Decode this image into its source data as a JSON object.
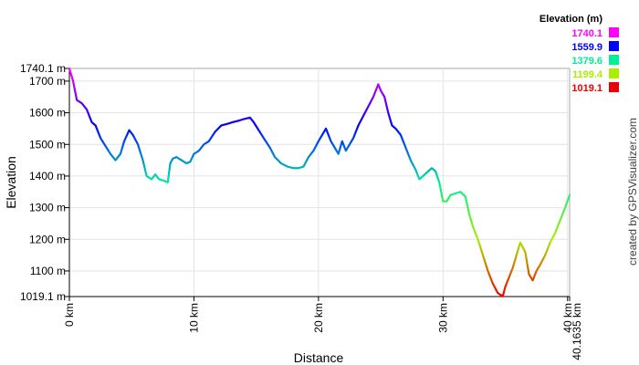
{
  "chart_data": {
    "type": "line",
    "xlabel": "Distance",
    "ylabel": "Elevation",
    "x_unit": "km",
    "xlim": [
      0,
      40.1635
    ],
    "ylim": [
      1019.1,
      1740.1
    ],
    "x_ticks": [
      "0 km",
      "10 km",
      "20 km",
      "30 km",
      "40 km"
    ],
    "x_end_label": "40.1635 km",
    "y_ticks": [
      "1740.1 m",
      "1700 m",
      "1600 m",
      "1500 m",
      "1400 m",
      "1300 m",
      "1200 m",
      "1100 m",
      "1019.1 m"
    ],
    "y_tick_values": [
      1740.1,
      1700,
      1600,
      1500,
      1400,
      1300,
      1200,
      1100,
      1019.1
    ],
    "x_tick_values": [
      0,
      10,
      20,
      30,
      40,
      40.1635
    ],
    "legend": {
      "title": "Elevation (m)",
      "placement": "top-right",
      "entries": [
        {
          "label": "1740.1",
          "color": "#ff00ff"
        },
        {
          "label": "1559.9",
          "color": "#0000ff"
        },
        {
          "label": "1379.6",
          "color": "#00ee99"
        },
        {
          "label": "1199.4",
          "color": "#aaee00"
        },
        {
          "label": "1019.1",
          "color": "#ee0000"
        }
      ]
    },
    "credit": "created by GPSVisualizer.com",
    "grid": true,
    "series": [
      {
        "x": [
          0,
          0.3,
          0.6,
          1.0,
          1.4,
          1.8,
          2.1,
          2.5,
          2.9,
          3.3,
          3.7,
          4.1,
          4.4,
          4.8,
          5.1,
          5.5,
          5.9,
          6.2,
          6.6,
          6.9,
          7.2,
          7.6,
          7.9,
          8.1,
          8.3,
          8.6,
          9.0,
          9.4,
          9.7,
          10.0,
          10.4,
          10.8,
          11.2,
          11.7,
          12.2,
          12.7,
          13.1,
          13.6,
          14.0,
          14.5,
          14.8,
          15.2,
          15.6,
          16.1,
          16.5,
          17.0,
          17.5,
          18.0,
          18.4,
          18.8,
          19.2,
          19.6,
          20.0,
          20.3,
          20.6,
          21.0,
          21.3,
          21.6,
          21.9,
          22.2,
          22.5,
          22.8,
          23.2,
          23.6,
          24.0,
          24.4,
          24.8,
          25.0,
          25.3,
          25.6,
          25.9,
          26.2,
          26.6,
          27.0,
          27.4,
          27.8,
          28.1,
          28.4,
          28.8,
          29.1,
          29.4,
          29.7,
          30.0,
          30.3,
          30.6,
          31.0,
          31.4,
          31.8,
          32.1,
          32.4,
          32.8,
          33.2,
          33.6,
          34.0,
          34.4,
          34.8,
          35.0,
          35.3,
          35.6,
          35.9,
          36.2,
          36.6,
          36.9,
          37.2,
          37.5,
          37.8,
          38.2,
          38.6,
          39.0,
          39.4,
          39.8,
          40.1635
        ],
        "y": [
          1740,
          1700,
          1640,
          1630,
          1610,
          1570,
          1560,
          1520,
          1495,
          1470,
          1450,
          1470,
          1510,
          1545,
          1530,
          1500,
          1450,
          1400,
          1390,
          1405,
          1390,
          1385,
          1380,
          1440,
          1455,
          1460,
          1450,
          1440,
          1445,
          1470,
          1480,
          1500,
          1510,
          1540,
          1560,
          1565,
          1570,
          1575,
          1580,
          1585,
          1570,
          1545,
          1520,
          1490,
          1460,
          1440,
          1430,
          1425,
          1425,
          1430,
          1460,
          1480,
          1510,
          1530,
          1550,
          1510,
          1490,
          1470,
          1510,
          1480,
          1500,
          1520,
          1560,
          1590,
          1620,
          1650,
          1690,
          1670,
          1650,
          1600,
          1560,
          1550,
          1530,
          1490,
          1450,
          1420,
          1390,
          1400,
          1415,
          1425,
          1415,
          1380,
          1320,
          1320,
          1340,
          1345,
          1350,
          1335,
          1280,
          1240,
          1200,
          1150,
          1100,
          1060,
          1030,
          1020,
          1050,
          1080,
          1110,
          1150,
          1190,
          1160,
          1090,
          1070,
          1100,
          1120,
          1150,
          1190,
          1220,
          1260,
          1300,
          1340
        ]
      }
    ]
  }
}
